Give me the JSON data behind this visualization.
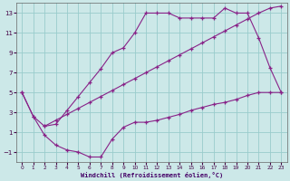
{
  "xlabel": "Windchill (Refroidissement éolien,°C)",
  "background_color": "#cce8e8",
  "grid_color": "#99cccc",
  "line_color": "#882288",
  "xlim": [
    -0.5,
    23.5
  ],
  "ylim": [
    -2,
    14
  ],
  "xticks": [
    0,
    1,
    2,
    3,
    4,
    5,
    6,
    7,
    8,
    9,
    10,
    11,
    12,
    13,
    14,
    15,
    16,
    17,
    18,
    19,
    20,
    21,
    22,
    23
  ],
  "yticks": [
    -1,
    1,
    3,
    5,
    7,
    9,
    11,
    13
  ],
  "series1_x": [
    0,
    1,
    2,
    3,
    4,
    5,
    6,
    7,
    8,
    9,
    10,
    11,
    12,
    13,
    14,
    15,
    16,
    17,
    18,
    19,
    20,
    21,
    22,
    23
  ],
  "series1_y": [
    5,
    2.6,
    1.6,
    1.8,
    3.2,
    4.6,
    6.0,
    7.4,
    9.0,
    9.5,
    11.0,
    13.0,
    13.0,
    13.0,
    12.5,
    12.5,
    12.5,
    12.5,
    13.5,
    13.0,
    13.0,
    10.5,
    7.5,
    5.0
  ],
  "series2_x": [
    2,
    3,
    4,
    5,
    6,
    7,
    8,
    9,
    10,
    11,
    12,
    13,
    14,
    15,
    16,
    17,
    18,
    19,
    20,
    21,
    22,
    23
  ],
  "series2_y": [
    1.6,
    2.2,
    2.8,
    3.4,
    4.0,
    4.6,
    5.2,
    5.8,
    6.4,
    7.0,
    7.6,
    8.2,
    8.8,
    9.4,
    10.0,
    10.6,
    11.2,
    11.8,
    12.4,
    13.0,
    13.5,
    13.7
  ],
  "series3_x": [
    0,
    1,
    2,
    3,
    4,
    5,
    6,
    7,
    8,
    9,
    10,
    11,
    12,
    13,
    14,
    15,
    16,
    17,
    18,
    19,
    20,
    21,
    22,
    23
  ],
  "series3_y": [
    5.0,
    2.6,
    0.7,
    -0.3,
    -0.8,
    -1.0,
    -1.5,
    -1.5,
    0.3,
    1.5,
    2.0,
    2.0,
    2.2,
    2.5,
    2.8,
    3.2,
    3.5,
    3.8,
    4.0,
    4.3,
    4.7,
    5.0,
    5.0,
    5.0
  ]
}
